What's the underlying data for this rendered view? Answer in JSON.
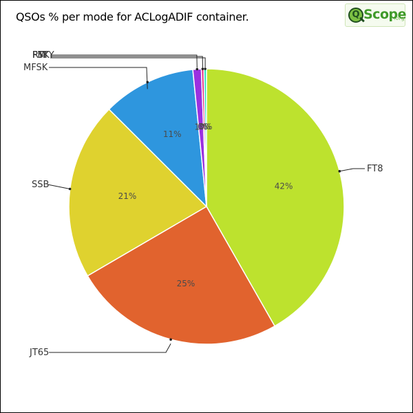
{
  "title": "QSOs % per mode for ACLogADIF container.",
  "logo": {
    "mark": "Q",
    "word": "Scope",
    "suffix": ".org"
  },
  "chart_data": {
    "type": "pie",
    "title": "QSOs % per mode for ACLogADIF container.",
    "start_angle_deg": 0,
    "direction": "clockwise",
    "slices": [
      {
        "label": "FT8",
        "value": 42,
        "pct_label": "42%",
        "color": "#bde22e"
      },
      {
        "label": "JT65",
        "value": 25,
        "pct_label": "25%",
        "color": "#e1632e"
      },
      {
        "label": "SSB",
        "value": 21,
        "pct_label": "21%",
        "color": "#dfd22f"
      },
      {
        "label": "MFSK",
        "value": 11,
        "pct_label": "11%",
        "color": "#2e96de"
      },
      {
        "label": "FM",
        "value": 1,
        "pct_label": "1%",
        "color": "#9b30e0"
      },
      {
        "label": "PSK",
        "value": 0.3,
        "pct_label": "0%",
        "color": "#e02e7e"
      },
      {
        "label": "RTTY",
        "value": 0.3,
        "pct_label": "0%",
        "color": "#2ee0b8"
      }
    ]
  }
}
